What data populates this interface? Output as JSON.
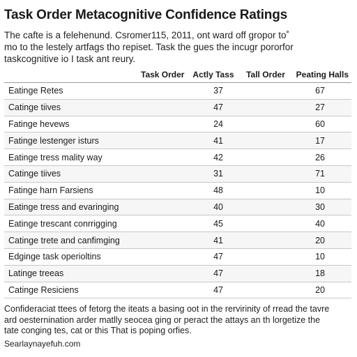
{
  "title": "Task Order Metacognitive Confidence Ratings",
  "intro_lines": [
    "The cafte is a felehenund. Csromer115, 2011, ont ward off gropor to˚",
    "mo to the lestely artfags tho repiset. Task the gues the incugr pororfor",
    "taskcognitive io I task ant reury."
  ],
  "table": {
    "headers": {
      "label": "",
      "task_order": "Task Order",
      "actly_tass": "Actly Tass",
      "tall_order": "Tall Order",
      "peating_halls": "Peating Halls"
    },
    "rows": [
      {
        "label": "Eatinge Retes",
        "v1": "37",
        "v2": "67"
      },
      {
        "label": "Catinge tiives",
        "v1": "47",
        "v2": "27"
      },
      {
        "label": "Fatinge hevews",
        "v1": "24",
        "v2": "60"
      },
      {
        "label": "Fatinge lestenger isturs",
        "v1": "41",
        "v2": "17"
      },
      {
        "label": "Eatinge tress mality way",
        "v1": "42",
        "v2": "26"
      },
      {
        "label": "Catinge tiives",
        "v1": "31",
        "v2": "71"
      },
      {
        "label": "Fatinge harn Farsiens",
        "v1": "48",
        "v2": "10"
      },
      {
        "label": "Eatinge tress and evaringing",
        "v1": "40",
        "v2": "30"
      },
      {
        "label": "Eatinge trescant conrrigging",
        "v1": "45",
        "v2": "40"
      },
      {
        "label": "Catinge trete and canfimging",
        "v1": "41",
        "v2": "20"
      },
      {
        "label": "Edginge task operioltins",
        "v1": "47",
        "v2": "10"
      },
      {
        "label": "Latinge treeas",
        "v1": "47",
        "v2": "18"
      },
      {
        "label": "Catinge Resiciens",
        "v1": "47",
        "v2": "20"
      }
    ]
  },
  "footnote_lines": [
    "Confideraciat ttees of fetorg the iteats a basing oot in the rervirinity of rread the tavre",
    "ard oesternination arder matlly seocea ging or peract the attays an th lorgetize the",
    "tate conging tes, cat or this  That is poping orfies."
  ],
  "source": "Searlaynayefuh.com"
}
